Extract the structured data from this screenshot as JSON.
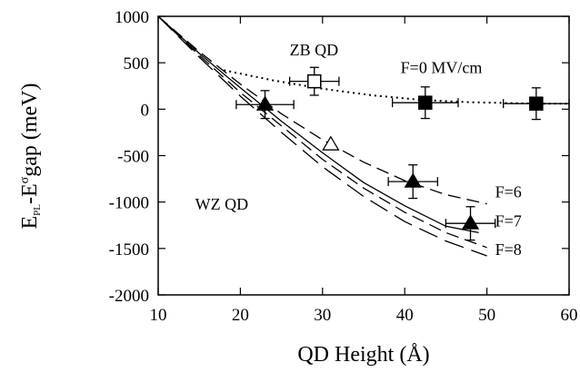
{
  "chart_data": {
    "type": "scatter",
    "xlabel": "QD Height (Å)",
    "ylabel": {
      "main": "E",
      "sub1": "PL",
      "mid": "-E",
      "sup": "σ",
      "tail": "gap (meV)"
    },
    "xlim": [
      10,
      60
    ],
    "ylim": [
      -2000,
      1000
    ],
    "x_ticks": [
      10,
      20,
      30,
      40,
      50,
      60
    ],
    "y_ticks": [
      1000,
      500,
      0,
      -500,
      -1000,
      -1500,
      -2000
    ],
    "grid": false,
    "annotations": [
      {
        "id": "zb",
        "text": "ZB QD",
        "x": 26,
        "y": 580
      },
      {
        "id": "f0",
        "text": "F=0 MV/cm",
        "x": 39.5,
        "y": 390
      },
      {
        "id": "wz",
        "text": "WZ QD",
        "x": 14.5,
        "y": -1080
      },
      {
        "id": "f6",
        "text": "F=6",
        "x": 51,
        "y": -950
      },
      {
        "id": "f7",
        "text": "F=7",
        "x": 51,
        "y": -1260
      },
      {
        "id": "f8",
        "text": "F=8",
        "x": 51,
        "y": -1570
      }
    ],
    "series": [
      {
        "style": "dotted-line",
        "points": [
          [
            18,
            420
          ],
          [
            24,
            310
          ],
          [
            30,
            220
          ],
          [
            36,
            150
          ],
          [
            42,
            100
          ],
          [
            48,
            75
          ],
          [
            56,
            60
          ],
          [
            60,
            60
          ]
        ]
      },
      {
        "style": "solid-line",
        "points": [
          [
            10,
            1000
          ],
          [
            15,
            600
          ],
          [
            20,
            230
          ],
          [
            25,
            -130
          ],
          [
            30,
            -470
          ],
          [
            35,
            -790
          ],
          [
            40,
            -1040
          ],
          [
            45,
            -1260
          ],
          [
            49,
            -1330
          ]
        ]
      },
      {
        "style": "dashed-line",
        "points": [
          [
            10,
            1000
          ],
          [
            15,
            620
          ],
          [
            20,
            270
          ],
          [
            25,
            -50
          ],
          [
            30,
            -330
          ],
          [
            35,
            -570
          ],
          [
            40,
            -770
          ],
          [
            45,
            -920
          ],
          [
            50,
            -1020
          ]
        ]
      },
      {
        "style": "dashed-line",
        "points": [
          [
            10,
            1000
          ],
          [
            15,
            580
          ],
          [
            20,
            180
          ],
          [
            25,
            -180
          ],
          [
            30,
            -540
          ],
          [
            35,
            -850
          ],
          [
            40,
            -1110
          ],
          [
            45,
            -1330
          ],
          [
            50,
            -1490
          ]
        ]
      },
      {
        "style": "long-dashed-line",
        "points": [
          [
            10,
            1000
          ],
          [
            15,
            560
          ],
          [
            20,
            140
          ],
          [
            25,
            -250
          ],
          [
            30,
            -620
          ],
          [
            35,
            -940
          ],
          [
            40,
            -1210
          ],
          [
            45,
            -1420
          ],
          [
            50,
            -1580
          ]
        ]
      },
      {
        "style": "marker",
        "marker": "open-square",
        "points": [
          {
            "x": 29,
            "y": 300,
            "xerr": 3,
            "yerr": 150
          }
        ]
      },
      {
        "style": "marker",
        "marker": "filled-square",
        "points": [
          {
            "x": 42.5,
            "y": 70,
            "xerr": 4,
            "yerr": 170
          },
          {
            "x": 56,
            "y": 60,
            "xerr": 4,
            "yerr": 170
          }
        ]
      },
      {
        "style": "marker",
        "marker": "filled-triangle",
        "points": [
          {
            "x": 23,
            "y": 50,
            "xerr": 3.5,
            "yerr": 150
          },
          {
            "x": 41,
            "y": -780,
            "xerr": 3,
            "yerr": 180
          },
          {
            "x": 48,
            "y": -1230,
            "xerr": 3,
            "yerr": 180
          }
        ]
      },
      {
        "style": "marker",
        "marker": "open-triangle",
        "points": [
          {
            "x": 31,
            "y": -380
          }
        ]
      }
    ]
  }
}
